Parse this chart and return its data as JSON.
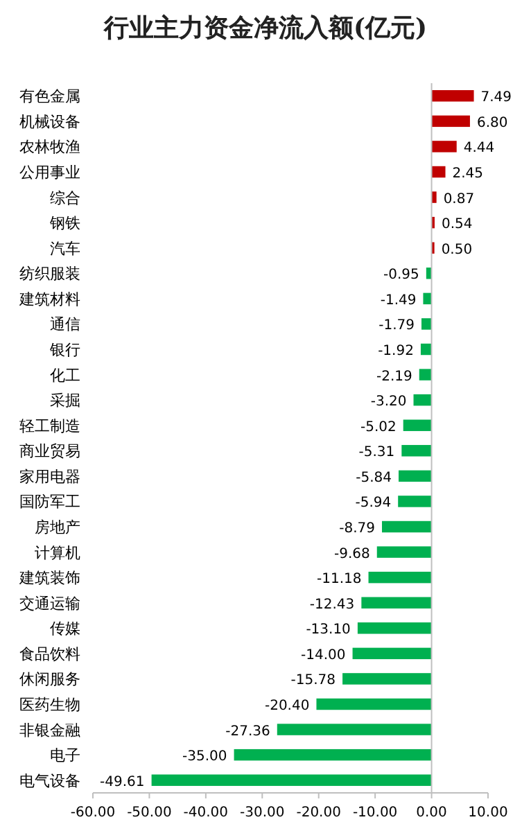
{
  "chart_data": {
    "type": "bar",
    "orientation": "horizontal",
    "title": "行业主力资金净流入额(亿元)",
    "categories": [
      "有色金属",
      "机械设备",
      "农林牧渔",
      "公用事业",
      "综合",
      "钢铁",
      "汽车",
      "纺织服装",
      "建筑材料",
      "通信",
      "银行",
      "化工",
      "采掘",
      "轻工制造",
      "商业贸易",
      "家用电器",
      "国防军工",
      "房地产",
      "计算机",
      "建筑装饰",
      "交通运输",
      "传媒",
      "食品饮料",
      "休闲服务",
      "医药生物",
      "非银金融",
      "电子",
      "电气设备"
    ],
    "values": [
      7.49,
      6.8,
      4.44,
      2.45,
      0.87,
      0.54,
      0.5,
      -0.95,
      -1.49,
      -1.79,
      -1.92,
      -2.19,
      -3.2,
      -5.02,
      -5.31,
      -5.84,
      -5.94,
      -8.79,
      -9.68,
      -11.18,
      -12.43,
      -13.1,
      -14.0,
      -15.78,
      -20.4,
      -27.36,
      -35.0,
      -49.61
    ],
    "colors": [
      "#c00000",
      "#c00000",
      "#c00000",
      "#c00000",
      "#c00000",
      "#c00000",
      "#c00000",
      "#00b050",
      "#00b050",
      "#00b050",
      "#00b050",
      "#00b050",
      "#00b050",
      "#00b050",
      "#00b050",
      "#00b050",
      "#00b050",
      "#00b050",
      "#00b050",
      "#00b050",
      "#00b050",
      "#00b050",
      "#00b050",
      "#00b050",
      "#00b050",
      "#00b050",
      "#00b050",
      "#00b050"
    ],
    "value_labels": [
      "7.49",
      "6.80",
      "4.44",
      "2.45",
      "0.87",
      "0.54",
      "0.50",
      "-0.95",
      "-1.49",
      "-1.79",
      "-1.92",
      "-2.19",
      "-3.20",
      "-5.02",
      "-5.31",
      "-5.84",
      "-5.94",
      "-8.79",
      "-9.68",
      "-11.18",
      "-12.43",
      "-13.10",
      "-14.00",
      "-15.78",
      "-20.40",
      "-27.36",
      "-35.00",
      "-49.61"
    ],
    "xlim": [
      -60,
      10
    ],
    "xticks": [
      {
        "value": -60,
        "label": "-60.00"
      },
      {
        "value": -50,
        "label": "-50.00"
      },
      {
        "value": -40,
        "label": "-40.00"
      },
      {
        "value": -30,
        "label": "-30.00"
      },
      {
        "value": -20,
        "label": "-20.00"
      },
      {
        "value": -10,
        "label": "-10.00"
      },
      {
        "value": 0,
        "label": "0.00"
      },
      {
        "value": 10,
        "label": "10.00"
      }
    ]
  }
}
